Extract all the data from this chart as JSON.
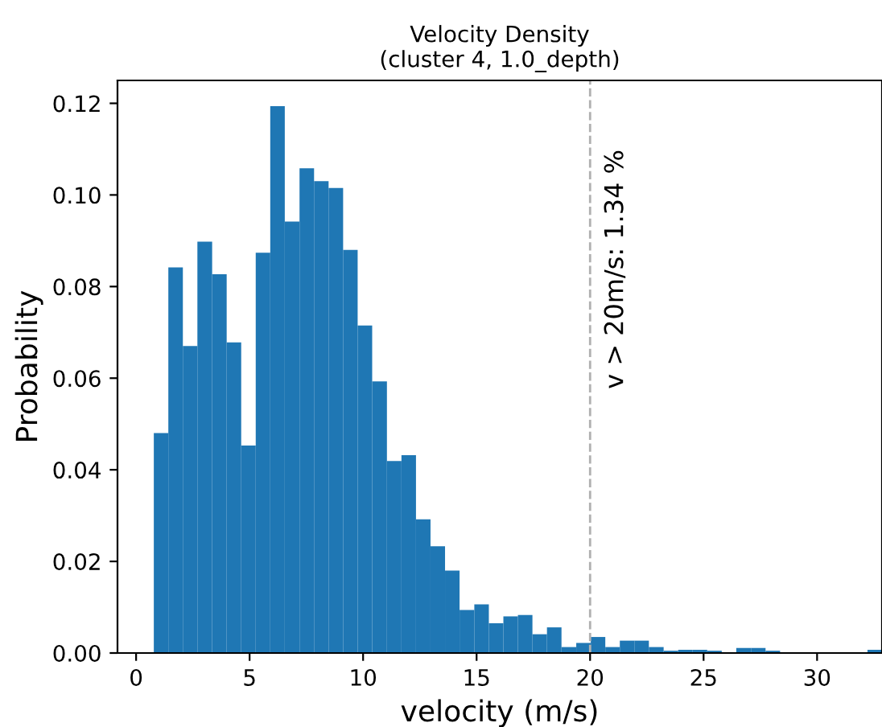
{
  "chart_data": {
    "type": "histogram",
    "title": "Velocity Density\n(cluster 4, 1.0_depth)",
    "xlabel": "velocity (m/s)",
    "ylabel": "Probability",
    "color": "#1f77b4",
    "bins": [
      0.78,
      1.42,
      2.06,
      2.7,
      3.35,
      3.99,
      4.63,
      5.27,
      5.91,
      6.55,
      7.2,
      7.84,
      8.48,
      9.12,
      9.76,
      10.4,
      11.05,
      11.69,
      12.33,
      12.97,
      13.61,
      14.25,
      14.9,
      15.54,
      16.18,
      16.82,
      17.46,
      18.1,
      18.74,
      19.39,
      20.03,
      20.67,
      21.31,
      21.95,
      22.59,
      23.24,
      23.88,
      24.52,
      25.16,
      25.8,
      26.44,
      27.09,
      27.73,
      28.37,
      29.01,
      29.65,
      30.29,
      30.94,
      31.58,
      32.22,
      32.86
    ],
    "values": [
      0.048,
      0.0842,
      0.067,
      0.0898,
      0.0827,
      0.0678,
      0.0453,
      0.0874,
      0.1194,
      0.0942,
      0.1058,
      0.103,
      0.1015,
      0.088,
      0.0715,
      0.0593,
      0.0419,
      0.0432,
      0.0292,
      0.0233,
      0.018,
      0.0094,
      0.0106,
      0.0065,
      0.008,
      0.0083,
      0.0041,
      0.0056,
      0.0013,
      0.0022,
      0.0035,
      0.0013,
      0.0027,
      0.0027,
      0.0013,
      0.0005,
      0.0007,
      0.0007,
      0.0005,
      null,
      0.0011,
      0.0011,
      0.0005,
      0,
      null,
      null,
      0,
      null,
      0,
      0.0007
    ],
    "xlim": [
      -0.82,
      32.86
    ],
    "xticks": [
      0,
      5,
      10,
      15,
      20,
      25,
      30
    ],
    "ylim": [
      0,
      0.125
    ],
    "yticks": [
      {
        "value": 0,
        "label": "0.00"
      },
      {
        "value": 0.02,
        "label": "0.02"
      },
      {
        "value": 0.04,
        "label": "0.04"
      },
      {
        "value": 0.06,
        "label": "0.06"
      },
      {
        "value": 0.08,
        "label": "0.08"
      },
      {
        "value": 0.1,
        "label": "0.10"
      },
      {
        "value": 0.12,
        "label": "0.12"
      }
    ],
    "ref_lines": [
      {
        "axis": "x",
        "value": 20,
        "color": "#b0b0b0",
        "line_style": "dashed"
      }
    ],
    "annotations": [
      "v > 20m/s: 1.34 %"
    ],
    "grid": false,
    "legend": false
  }
}
